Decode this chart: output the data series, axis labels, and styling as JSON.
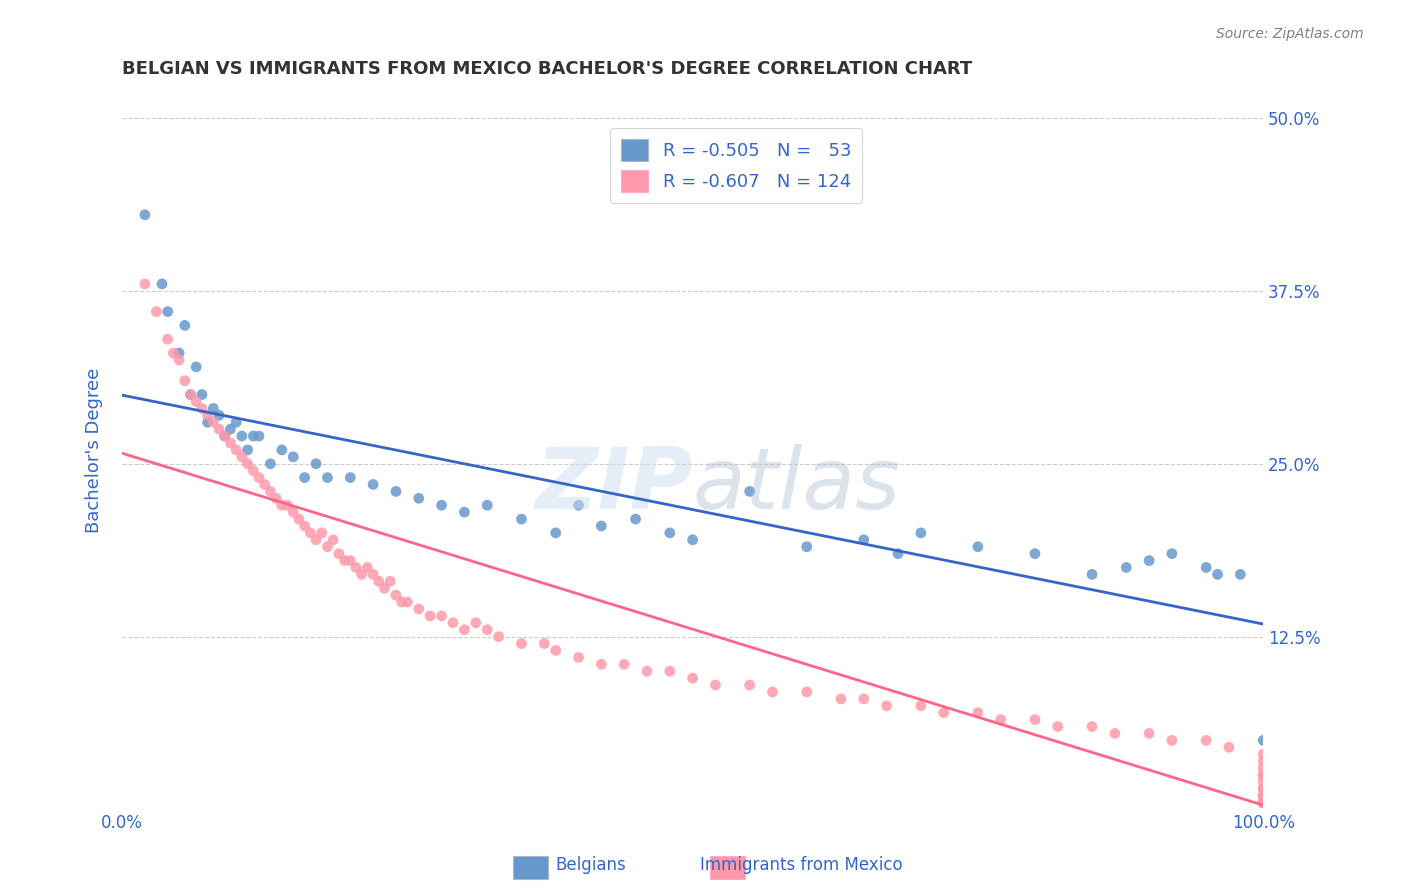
{
  "title": "BELGIAN VS IMMIGRANTS FROM MEXICO BACHELOR'S DEGREE CORRELATION CHART",
  "source": "Source: ZipAtlas.com",
  "xlabel": "",
  "ylabel": "Bachelor's Degree",
  "xlim": [
    0,
    100
  ],
  "ylim": [
    0,
    52
  ],
  "xticks": [
    0,
    12.5,
    25.0,
    37.5,
    50.0,
    62.5,
    75.0,
    87.5,
    100
  ],
  "xtick_labels": [
    "0.0%",
    "",
    "",
    "",
    "",
    "",
    "",
    "",
    "100.0%"
  ],
  "yticks": [
    0,
    12.5,
    25.0,
    37.5,
    50.0
  ],
  "ytick_labels": [
    "",
    "12.5%",
    "25.0%",
    "37.5%",
    "50.0%"
  ],
  "legend_r1": "R = -0.505",
  "legend_n1": "N =  53",
  "legend_r2": "R = -0.607",
  "legend_n2": "N = 124",
  "blue_color": "#6699CC",
  "pink_color": "#FF99AA",
  "blue_line_color": "#3366CC",
  "pink_line_color": "#FF6688",
  "watermark": "ZIPatlas",
  "background_color": "#FFFFFF",
  "grid_color": "#CCCCCC",
  "title_color": "#333333",
  "axis_label_color": "#3366CC",
  "belgians_x": [
    2.0,
    3.5,
    4.0,
    5.0,
    5.5,
    6.0,
    6.5,
    7.0,
    7.5,
    8.0,
    8.5,
    9.0,
    9.5,
    10.0,
    10.5,
    11.0,
    11.5,
    12.0,
    13.0,
    14.0,
    15.0,
    16.0,
    17.0,
    18.0,
    20.0,
    22.0,
    24.0,
    26.0,
    28.0,
    30.0,
    32.0,
    35.0,
    38.0,
    40.0,
    42.0,
    45.0,
    48.0,
    50.0,
    55.0,
    60.0,
    65.0,
    68.0,
    70.0,
    75.0,
    80.0,
    85.0,
    88.0,
    90.0,
    92.0,
    95.0,
    96.0,
    98.0,
    100.0
  ],
  "belgians_y": [
    43.0,
    38.0,
    36.0,
    33.0,
    35.0,
    30.0,
    32.0,
    30.0,
    28.0,
    29.0,
    28.5,
    27.0,
    27.5,
    28.0,
    27.0,
    26.0,
    27.0,
    27.0,
    25.0,
    26.0,
    25.5,
    24.0,
    25.0,
    24.0,
    24.0,
    23.5,
    23.0,
    22.5,
    22.0,
    21.5,
    22.0,
    21.0,
    20.0,
    22.0,
    20.5,
    21.0,
    20.0,
    19.5,
    23.0,
    19.0,
    19.5,
    18.5,
    20.0,
    19.0,
    18.5,
    17.0,
    17.5,
    18.0,
    18.5,
    17.5,
    17.0,
    17.0,
    5.0
  ],
  "mexico_x": [
    2.0,
    3.0,
    4.0,
    4.5,
    5.0,
    5.5,
    6.0,
    6.5,
    7.0,
    7.5,
    8.0,
    8.5,
    9.0,
    9.5,
    10.0,
    10.5,
    11.0,
    11.5,
    12.0,
    12.5,
    13.0,
    13.5,
    14.0,
    14.5,
    15.0,
    15.5,
    16.0,
    16.5,
    17.0,
    17.5,
    18.0,
    18.5,
    19.0,
    19.5,
    20.0,
    20.5,
    21.0,
    21.5,
    22.0,
    22.5,
    23.0,
    23.5,
    24.0,
    24.5,
    25.0,
    26.0,
    27.0,
    28.0,
    29.0,
    30.0,
    31.0,
    32.0,
    33.0,
    35.0,
    37.0,
    38.0,
    40.0,
    42.0,
    44.0,
    46.0,
    48.0,
    50.0,
    52.0,
    55.0,
    57.0,
    60.0,
    63.0,
    65.0,
    67.0,
    70.0,
    72.0,
    75.0,
    77.0,
    80.0,
    82.0,
    85.0,
    87.0,
    90.0,
    92.0,
    95.0,
    97.0,
    100.0,
    100.0,
    100.0,
    100.0,
    100.0,
    100.0,
    100.0,
    100.0,
    100.0,
    100.0,
    100.0,
    100.0,
    100.0,
    100.0,
    100.0,
    100.0,
    100.0,
    100.0,
    100.0,
    100.0,
    100.0,
    100.0,
    100.0,
    100.0,
    100.0,
    100.0,
    100.0,
    100.0,
    100.0,
    100.0,
    100.0,
    100.0,
    100.0,
    100.0,
    100.0,
    100.0,
    100.0,
    100.0,
    100.0,
    100.0,
    100.0,
    100.0,
    100.0
  ],
  "mexico_y": [
    38.0,
    36.0,
    34.0,
    33.0,
    32.5,
    31.0,
    30.0,
    29.5,
    29.0,
    28.5,
    28.0,
    27.5,
    27.0,
    26.5,
    26.0,
    25.5,
    25.0,
    24.5,
    24.0,
    23.5,
    23.0,
    22.5,
    22.0,
    22.0,
    21.5,
    21.0,
    20.5,
    20.0,
    19.5,
    20.0,
    19.0,
    19.5,
    18.5,
    18.0,
    18.0,
    17.5,
    17.0,
    17.5,
    17.0,
    16.5,
    16.0,
    16.5,
    15.5,
    15.0,
    15.0,
    14.5,
    14.0,
    14.0,
    13.5,
    13.0,
    13.5,
    13.0,
    12.5,
    12.0,
    12.0,
    11.5,
    11.0,
    10.5,
    10.5,
    10.0,
    10.0,
    9.5,
    9.0,
    9.0,
    8.5,
    8.5,
    8.0,
    8.0,
    7.5,
    7.5,
    7.0,
    7.0,
    6.5,
    6.5,
    6.0,
    6.0,
    5.5,
    5.5,
    5.0,
    5.0,
    4.5,
    4.0,
    3.5,
    3.0,
    2.5,
    2.5,
    2.0,
    1.5,
    1.5,
    1.0,
    1.0,
    0.5,
    0.5,
    0.5,
    0.5,
    0.5,
    0.5,
    0.5,
    0.5,
    0.5,
    0.5,
    0.5,
    0.5,
    0.5,
    0.5,
    0.5,
    0.5,
    0.5,
    0.5,
    0.5,
    0.5,
    0.5,
    0.5,
    0.5,
    0.5,
    0.5,
    0.5,
    0.5,
    0.5,
    0.5,
    0.5,
    0.5,
    0.5,
    0.5
  ]
}
